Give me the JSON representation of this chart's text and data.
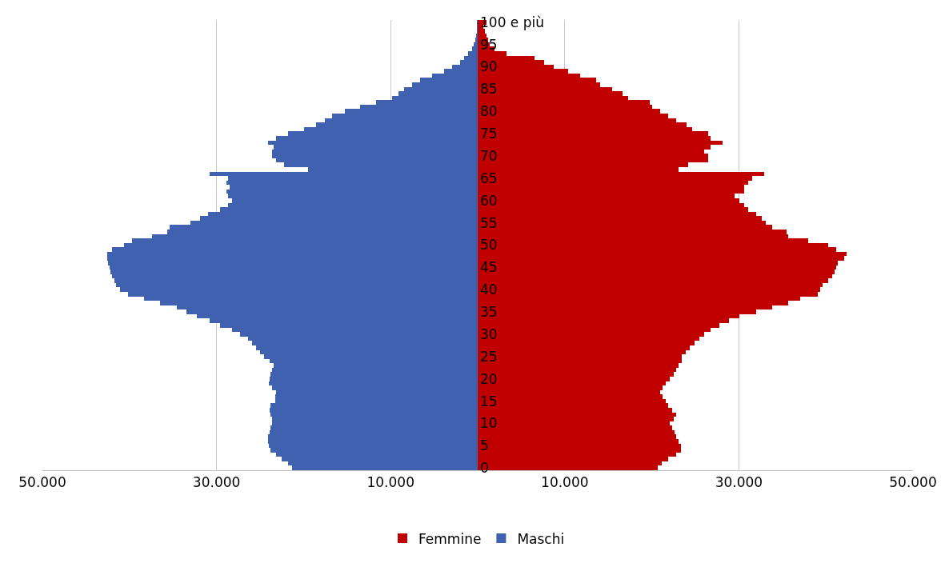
{
  "chart_data": {
    "type": "bar",
    "orientation": "horizontal",
    "stacked": true,
    "categories": [
      "100 e più",
      null,
      null,
      null,
      null,
      "95",
      null,
      null,
      null,
      null,
      "90",
      null,
      null,
      null,
      null,
      "85",
      null,
      null,
      null,
      null,
      "80",
      null,
      null,
      null,
      null,
      "75",
      null,
      null,
      null,
      null,
      "70",
      null,
      null,
      null,
      null,
      "65",
      null,
      null,
      null,
      null,
      "60",
      null,
      null,
      null,
      null,
      "55",
      null,
      null,
      null,
      null,
      "50",
      null,
      null,
      null,
      null,
      "45",
      null,
      null,
      null,
      null,
      "40",
      null,
      null,
      null,
      null,
      "35",
      null,
      null,
      null,
      null,
      "30",
      null,
      null,
      null,
      null,
      "25",
      null,
      null,
      null,
      null,
      "20",
      null,
      null,
      null,
      null,
      "15",
      null,
      null,
      null,
      null,
      "10",
      null,
      null,
      null,
      null,
      "5",
      null,
      null,
      null,
      null,
      "0"
    ],
    "series": [
      {
        "name": "Femmine",
        "color": "#c00000",
        "values": [
          1000,
          600,
          800,
          1000,
          1200,
          1400,
          1900,
          3300,
          6500,
          7600,
          8700,
          10400,
          11800,
          13600,
          14100,
          15400,
          16600,
          17300,
          19800,
          20000,
          21000,
          21900,
          22800,
          24000,
          24600,
          26500,
          26700,
          28100,
          26700,
          26000,
          26500,
          26500,
          24200,
          23100,
          32900,
          31500,
          31100,
          30600,
          30600,
          29500,
          30100,
          30600,
          31100,
          32000,
          32600,
          33100,
          33800,
          35500,
          35700,
          38000,
          40300,
          41200,
          42400,
          42100,
          41400,
          41200,
          41000,
          40700,
          40300,
          39600,
          39300,
          39100,
          37000,
          35700,
          33800,
          32000,
          30100,
          28900,
          27800,
          26700,
          26000,
          25500,
          24900,
          24400,
          23900,
          23400,
          23400,
          23100,
          22800,
          22500,
          22100,
          21600,
          21200,
          21000,
          21200,
          21600,
          21900,
          22300,
          22800,
          22500,
          22100,
          22300,
          22600,
          22800,
          23100,
          23300,
          23300,
          22800,
          21900,
          21100,
          20700
        ]
      },
      {
        "name": "Maschi",
        "color": "#4060b0",
        "values": [
          -100,
          -100,
          -100,
          -200,
          -300,
          -500,
          -600,
          -1100,
          -1600,
          -2000,
          -2900,
          -3900,
          -5200,
          -6600,
          -7500,
          -8500,
          -9100,
          -9800,
          -11700,
          -13500,
          -15300,
          -16700,
          -17600,
          -18600,
          -19900,
          -21800,
          -23200,
          -24100,
          -23400,
          -23600,
          -23600,
          -23200,
          -22200,
          -19500,
          -30800,
          -28700,
          -28900,
          -28500,
          -28900,
          -28700,
          -28200,
          -28700,
          -29600,
          -31000,
          -31900,
          -33000,
          -35400,
          -35700,
          -37400,
          -39700,
          -40600,
          -42000,
          -42600,
          -42600,
          -42500,
          -42300,
          -42200,
          -42000,
          -41700,
          -41500,
          -41100,
          -40200,
          -38300,
          -36500,
          -34600,
          -33500,
          -32300,
          -30800,
          -29600,
          -28200,
          -27300,
          -26400,
          -25900,
          -25500,
          -25000,
          -24500,
          -23900,
          -23400,
          -23600,
          -23800,
          -23900,
          -24000,
          -23600,
          -23200,
          -23300,
          -23300,
          -23800,
          -23900,
          -23800,
          -23600,
          -23600,
          -23800,
          -23900,
          -24100,
          -24100,
          -24000,
          -23800,
          -23200,
          -22500,
          -21800,
          -21300
        ]
      }
    ],
    "xlim": [
      -50000,
      50000
    ],
    "xticks": [
      {
        "value": -50000,
        "label": "50.000"
      },
      {
        "value": -30000,
        "label": "30.000"
      },
      {
        "value": -10000,
        "label": "10.000"
      },
      {
        "value": 10000,
        "label": "10.000"
      },
      {
        "value": 30000,
        "label": "30.000"
      },
      {
        "value": 50000,
        "label": "50.000"
      }
    ],
    "grid": "x",
    "legend": "bottom"
  }
}
